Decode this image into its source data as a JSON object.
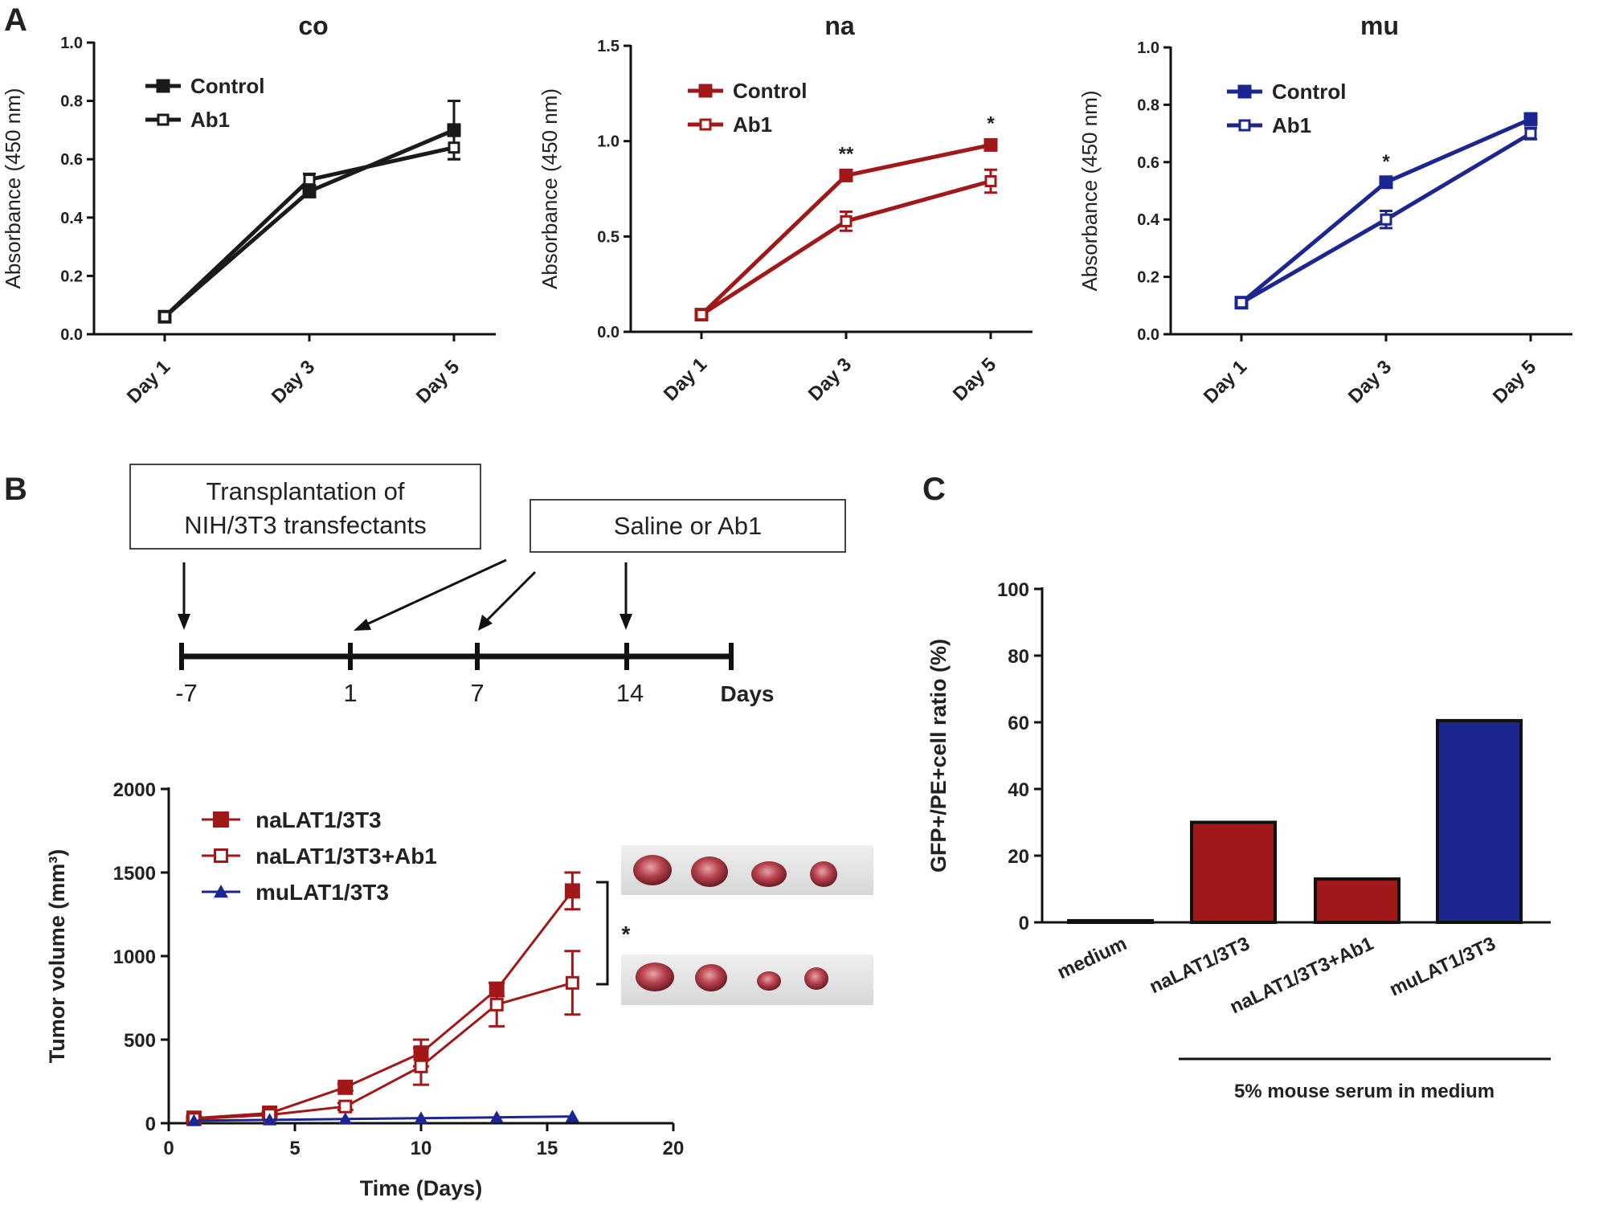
{
  "panels": {
    "a_label": "A",
    "b_label": "B",
    "c_label": "C"
  },
  "colors": {
    "black": "#1a1a1a",
    "red": "#a01818",
    "blue": "#1c2590"
  },
  "icons": {
    "filled_square": "filled-square-marker",
    "open_square": "open-square-marker",
    "triangle": "triangle-marker"
  },
  "timeline": {
    "box1_line1": "Transplantation of",
    "box1_line2": "NIH/3T3 transfectants",
    "box2": "Saline or Ab1",
    "ticks": [
      "-7",
      "1",
      "7",
      "14"
    ],
    "unit": "Days"
  },
  "tumor_photos": "tumor-photos",
  "chart_data": [
    {
      "id": "a-co",
      "type": "line",
      "title": "co",
      "ylabel": "Absorbance (450 nm)",
      "xlabel": "",
      "categories": [
        "Day 1",
        "Day 3",
        "Day 5"
      ],
      "ylim": [
        0,
        1.0
      ],
      "yticks": [
        "0.0",
        "0.2",
        "0.4",
        "0.6",
        "0.8",
        "1.0"
      ],
      "series": [
        {
          "name": "Control",
          "values": [
            0.06,
            0.49,
            0.7
          ],
          "err": [
            0.01,
            0.02,
            0.1
          ],
          "marker": "filled"
        },
        {
          "name": "Ab1",
          "values": [
            0.06,
            0.53,
            0.64
          ],
          "err": [
            0.01,
            0.02,
            0.04
          ],
          "marker": "open"
        }
      ],
      "annotations": [
        "",
        "",
        ""
      ]
    },
    {
      "id": "a-na",
      "type": "line",
      "title": "na",
      "ylabel": "Absorbance (450 nm)",
      "xlabel": "",
      "categories": [
        "Day 1",
        "Day 3",
        "Day 5"
      ],
      "ylim": [
        0,
        1.5
      ],
      "yticks": [
        "0.0",
        "0.5",
        "1.0",
        "1.5"
      ],
      "series": [
        {
          "name": "Control",
          "values": [
            0.09,
            0.82,
            0.98
          ],
          "err": [
            0.01,
            0.02,
            0.02
          ],
          "marker": "filled"
        },
        {
          "name": "Ab1",
          "values": [
            0.09,
            0.58,
            0.79
          ],
          "err": [
            0.01,
            0.05,
            0.06
          ],
          "marker": "open"
        }
      ],
      "annotations": [
        "",
        "**",
        "*"
      ]
    },
    {
      "id": "a-mu",
      "type": "line",
      "title": "mu",
      "ylabel": "Absorbance (450 nm)",
      "xlabel": "",
      "categories": [
        "Day 1",
        "Day 3",
        "Day 5"
      ],
      "ylim": [
        0,
        1.0
      ],
      "yticks": [
        "0.0",
        "0.2",
        "0.4",
        "0.6",
        "0.8",
        "1.0"
      ],
      "series": [
        {
          "name": "Control",
          "values": [
            0.11,
            0.53,
            0.75
          ],
          "err": [
            0.01,
            0.01,
            0.02
          ],
          "marker": "filled"
        },
        {
          "name": "Ab1",
          "values": [
            0.11,
            0.4,
            0.7
          ],
          "err": [
            0.01,
            0.03,
            0.02
          ],
          "marker": "open"
        }
      ],
      "annotations": [
        "",
        "*",
        ""
      ]
    },
    {
      "id": "b-tumor",
      "type": "line",
      "title": "",
      "ylabel": "Tumor volume (mm³)",
      "xlabel": "Time (Days)",
      "xlim": [
        0,
        20
      ],
      "ylim": [
        0,
        2000
      ],
      "xticks": [
        "0",
        "5",
        "10",
        "15",
        "20"
      ],
      "yticks": [
        "0",
        "500",
        "1000",
        "1500",
        "2000"
      ],
      "series": [
        {
          "name": "naLAT1/3T3",
          "x": [
            1,
            4,
            7,
            10,
            13,
            16
          ],
          "values": [
            30,
            60,
            215,
            420,
            800,
            1390
          ],
          "err": [
            10,
            10,
            20,
            80,
            40,
            110
          ],
          "marker": "filled"
        },
        {
          "name": "naLAT1/3T3+Ab1",
          "x": [
            1,
            4,
            7,
            10,
            13,
            16
          ],
          "values": [
            25,
            50,
            100,
            340,
            710,
            840
          ],
          "err": [
            10,
            10,
            20,
            110,
            130,
            190
          ],
          "marker": "open"
        },
        {
          "name": "muLAT1/3T3",
          "x": [
            1,
            4,
            7,
            10,
            13,
            16
          ],
          "values": [
            15,
            20,
            25,
            30,
            35,
            40
          ],
          "err": [
            0,
            0,
            0,
            0,
            0,
            0
          ],
          "marker": "triangle"
        }
      ],
      "annotation": "*"
    },
    {
      "id": "c-bar",
      "type": "bar",
      "title": "",
      "ylabel": "GFP+/PE+cell ratio (%)",
      "xlabel": "",
      "categories": [
        "medium",
        "naLAT1/3T3",
        "naLAT1/3T3+Ab1",
        "muLAT1/3T3"
      ],
      "values": [
        0.5,
        30,
        13,
        60.5
      ],
      "ylim": [
        0,
        100
      ],
      "yticks": [
        "0",
        "20",
        "40",
        "60",
        "80",
        "100"
      ],
      "group_label": "5% mouse serum in medium"
    }
  ]
}
